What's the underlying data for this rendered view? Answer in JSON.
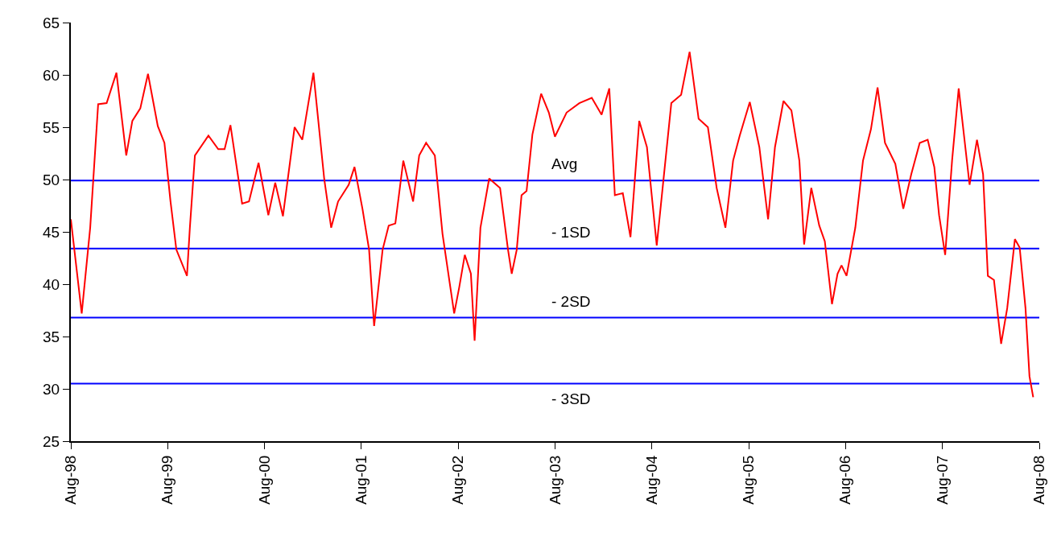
{
  "chart_data": {
    "type": "line",
    "x": [
      "1998-08-01",
      "1998-09-11",
      "1998-10-13",
      "1998-11-12",
      "1998-12-14",
      "1999-01-20",
      "1999-02-26",
      "1999-03-21",
      "1999-04-20",
      "1999-05-19",
      "1999-06-25",
      "1999-07-20",
      "1999-08-12",
      "1999-09-03",
      "1999-10-13",
      "1999-10-24",
      "1999-11-12",
      "2000-01-02",
      "2000-02-08",
      "2000-03-03",
      "2000-03-25",
      "2000-05-08",
      "2000-06-03",
      "2000-07-09",
      "2000-08-15",
      "2000-09-10",
      "2000-10-09",
      "2000-11-22",
      "2000-12-21",
      "2001-02-01",
      "2001-03-14",
      "2001-04-09",
      "2001-05-05",
      "2001-06-14",
      "2001-07-06",
      "2001-08-05",
      "2001-08-30",
      "2001-09-18",
      "2001-10-20",
      "2001-11-12",
      "2001-12-07",
      "2002-01-06",
      "2002-02-12",
      "2002-03-07",
      "2002-04-02",
      "2002-05-05",
      "2002-06-03",
      "2002-07-17",
      "2002-08-05",
      "2002-08-26",
      "2002-09-18",
      "2002-10-02",
      "2002-10-24",
      "2002-11-26",
      "2003-01-06",
      "2003-02-05",
      "2003-02-19",
      "2003-03-10",
      "2003-03-28",
      "2003-04-16",
      "2003-05-08",
      "2003-06-10",
      "2003-07-09",
      "2003-08-01",
      "2003-09-14",
      "2003-11-01",
      "2003-12-18",
      "2004-01-24",
      "2004-02-22",
      "2004-03-14",
      "2004-04-13",
      "2004-05-12",
      "2004-06-14",
      "2004-07-13",
      "2004-08-19",
      "2004-10-13",
      "2004-11-19",
      "2004-12-21",
      "2005-01-24",
      "2005-02-28",
      "2005-04-02",
      "2005-05-05",
      "2005-06-03",
      "2005-06-28",
      "2005-08-05",
      "2005-09-10",
      "2005-10-13",
      "2005-11-08",
      "2005-12-10",
      "2006-01-09",
      "2006-02-08",
      "2006-02-26",
      "2006-03-25",
      "2006-04-24",
      "2006-05-15",
      "2006-06-11",
      "2006-07-02",
      "2006-07-17",
      "2006-08-05",
      "2006-09-07",
      "2006-10-06",
      "2006-11-05",
      "2006-11-30",
      "2006-12-28",
      "2007-02-05",
      "2007-03-07",
      "2007-04-06",
      "2007-05-08",
      "2007-06-07",
      "2007-07-02",
      "2007-07-20",
      "2007-08-12",
      "2007-09-07",
      "2007-10-02",
      "2007-11-12",
      "2007-12-10",
      "2008-01-02",
      "2008-01-20",
      "2008-02-12",
      "2008-03-10",
      "2008-04-02",
      "2008-05-01",
      "2008-05-19",
      "2008-06-10",
      "2008-06-25",
      "2008-07-09"
    ],
    "series": [
      {
        "color": "#ff0000",
        "values": [
          46.2,
          37.2,
          45.4,
          57.2,
          57.3,
          60.2,
          52.3,
          55.6,
          56.8,
          60.1,
          55.1,
          53.5,
          47.9,
          43.3,
          40.8,
          45.4,
          52.3,
          54.2,
          52.9,
          52.9,
          55.2,
          47.7,
          47.9,
          51.6,
          46.6,
          49.7,
          46.5,
          55.0,
          53.8,
          60.2,
          50.0,
          45.4,
          47.9,
          49.5,
          51.2,
          47.2,
          43.3,
          36.0,
          43.3,
          45.6,
          45.8,
          51.8,
          47.9,
          52.3,
          53.5,
          52.3,
          44.8,
          37.2,
          39.7,
          42.8,
          41.0,
          34.6,
          45.4,
          50.1,
          49.2,
          43.3,
          41.0,
          43.3,
          48.5,
          48.9,
          54.3,
          58.2,
          56.4,
          54.1,
          56.4,
          57.3,
          57.8,
          56.2,
          58.7,
          48.5,
          48.7,
          44.5,
          55.6,
          53.1,
          43.7,
          57.3,
          58.1,
          62.2,
          55.8,
          55.0,
          49.2,
          45.4,
          51.8,
          54.2,
          57.4,
          53.1,
          46.2,
          53.1,
          57.5,
          56.6,
          51.8,
          43.8,
          49.2,
          45.6,
          44.1,
          38.1,
          41.0,
          41.8,
          40.8,
          45.4,
          51.8,
          54.8,
          58.8,
          53.5,
          51.5,
          47.2,
          50.5,
          53.5,
          53.8,
          51.2,
          46.6,
          42.8,
          51.8,
          58.7,
          49.5,
          53.8,
          50.5,
          40.8,
          40.4,
          34.3,
          37.7,
          44.3,
          43.5,
          37.7,
          31.2,
          29.2
        ]
      }
    ],
    "xlim": [
      "1998-08",
      "2008-08"
    ],
    "xticks": [
      {
        "value": "1998-08",
        "label": "Aug-98"
      },
      {
        "value": "1999-08",
        "label": "Aug-99"
      },
      {
        "value": "2000-08",
        "label": "Aug-00"
      },
      {
        "value": "2001-08",
        "label": "Aug-01"
      },
      {
        "value": "2002-08",
        "label": "Aug-02"
      },
      {
        "value": "2003-08",
        "label": "Aug-03"
      },
      {
        "value": "2004-08",
        "label": "Aug-04"
      },
      {
        "value": "2005-08",
        "label": "Aug-05"
      },
      {
        "value": "2006-08",
        "label": "Aug-06"
      },
      {
        "value": "2007-08",
        "label": "Aug-07"
      },
      {
        "value": "2008-08",
        "label": "Aug-08"
      }
    ],
    "ylim": [
      25,
      65
    ],
    "yticks": [
      25,
      30,
      35,
      40,
      45,
      50,
      55,
      60,
      65
    ],
    "ref_lines": [
      {
        "axis": "y",
        "value": 49.9,
        "label": "Avg",
        "color": "#0000ff"
      },
      {
        "axis": "y",
        "value": 43.4,
        "label": "- 1SD",
        "color": "#0000ff"
      },
      {
        "axis": "y",
        "value": 36.8,
        "label": "- 2SD",
        "color": "#0000ff"
      },
      {
        "axis": "y",
        "value": 30.5,
        "label": "- 3SD",
        "color": "#0000ff"
      }
    ],
    "grid": false,
    "marker": "none",
    "line_style": "solid"
  }
}
